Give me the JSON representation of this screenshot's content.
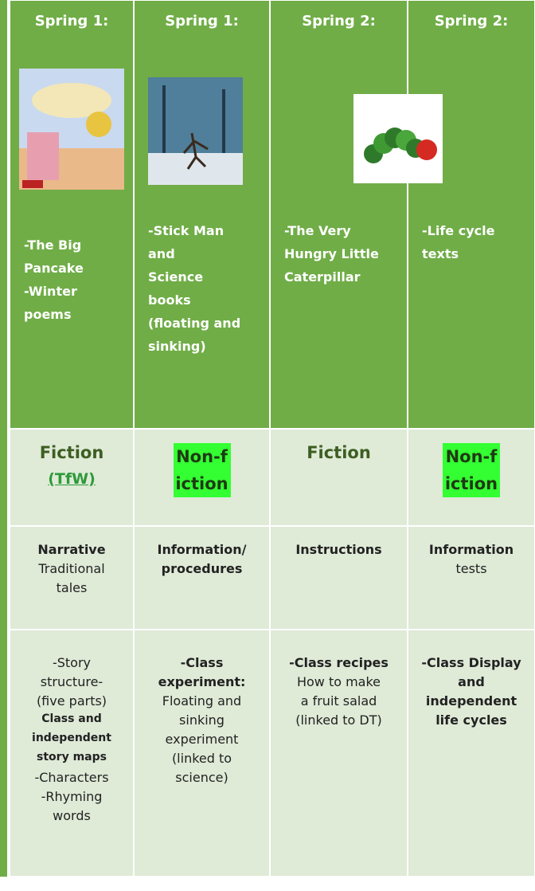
{
  "table": {
    "header": [
      "Spring 1:",
      "Spring 1:",
      "Spring 2:",
      "Spring 2:"
    ],
    "books": [
      [
        "-The Big",
        "Pancake",
        "-Winter",
        "poems"
      ],
      [
        "-Stick Man",
        "and",
        "Science",
        "books",
        "(floating and",
        "sinking)"
      ],
      [
        "-The Very",
        "Hungry Little",
        "Caterpillar"
      ],
      [
        "-Life cycle",
        "texts"
      ]
    ],
    "genre": [
      {
        "text": "Fiction",
        "link": "(TfW)"
      },
      {
        "text": "Non-fiction",
        "highlight": true
      },
      {
        "text": "Fiction"
      },
      {
        "text": "Non-fiction",
        "highlight": true
      }
    ],
    "text_type": [
      [
        {
          "text": "Narrative",
          "bold": true
        },
        {
          "text": "Traditional"
        },
        {
          "text": "tales"
        }
      ],
      [
        {
          "text": "Information/",
          "bold": true
        },
        {
          "text": "procedures",
          "bold": true
        }
      ],
      [
        {
          "text": "Instructions",
          "bold": true
        }
      ],
      [
        {
          "text": "Information",
          "bold": true
        },
        {
          "text": "tests"
        }
      ]
    ],
    "outcomes": [
      [
        {
          "text": "-Story"
        },
        {
          "text": "structure-"
        },
        {
          "text": "(five parts)"
        },
        {
          "text": "Class and",
          "bold": true,
          "small": true
        },
        {
          "text": "independent",
          "bold": true,
          "small": true
        },
        {
          "text": "story maps",
          "bold": true,
          "small": true
        },
        {
          "text": "-Characters"
        },
        {
          "text": "-Rhyming"
        },
        {
          "text": "words"
        }
      ],
      [
        {
          "text": "-Class",
          "bold": true
        },
        {
          "text": "experiment:",
          "bold": true
        },
        {
          "text": "Floating and"
        },
        {
          "text": "sinking"
        },
        {
          "text": "experiment"
        },
        {
          "text": "(linked to"
        },
        {
          "text": "science)"
        }
      ],
      [
        {
          "text": "-Class recipes",
          "bold": true
        },
        {
          "text": "How to make"
        },
        {
          "text": "a fruit salad"
        },
        {
          "text": "(linked to DT)"
        }
      ],
      [
        {
          "text": "-Class Display",
          "bold": true
        },
        {
          "text": "and",
          "bold": true
        },
        {
          "text": "independent",
          "bold": true
        },
        {
          "text": "life cycles",
          "bold": true
        }
      ]
    ]
  }
}
